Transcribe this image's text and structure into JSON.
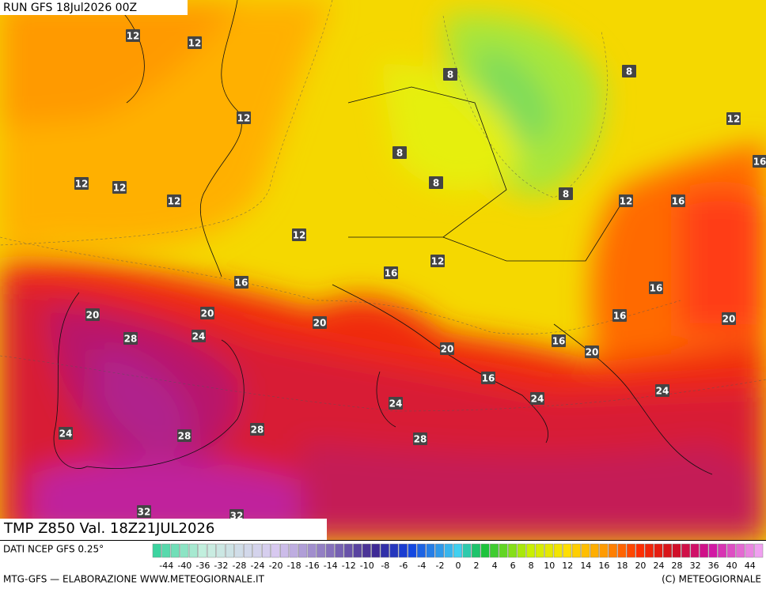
{
  "header": {
    "run": "RUN GFS 18Jul2026 00Z"
  },
  "map": {
    "field_label": "TMP Z850 Val. 18Z21JUL2026",
    "contour_labels": [
      12,
      12,
      8,
      8,
      12,
      12,
      8,
      16,
      12,
      12,
      12,
      8,
      8,
      12,
      16,
      12,
      12,
      16,
      16,
      16,
      20,
      20,
      20,
      16,
      20,
      28,
      24,
      20,
      16,
      20,
      16,
      24,
      24,
      24,
      24,
      28,
      28,
      28,
      32,
      32
    ]
  },
  "footer": {
    "source": "DATI NCEP GFS 0.25°",
    "credit": "MTG-GFS — ELABORAZIONE WWW.METEOGIORNALE.IT",
    "copyright": "(C) METEOGIORNALE"
  },
  "colorbar": {
    "labels": [
      -44,
      -40,
      -36,
      -32,
      -28,
      -24,
      -20,
      -18,
      -16,
      -14,
      -12,
      -10,
      -8,
      -6,
      -4,
      -2,
      0,
      2,
      4,
      6,
      8,
      10,
      12,
      14,
      16,
      18,
      20,
      24,
      28,
      32,
      36,
      40,
      44
    ]
  }
}
